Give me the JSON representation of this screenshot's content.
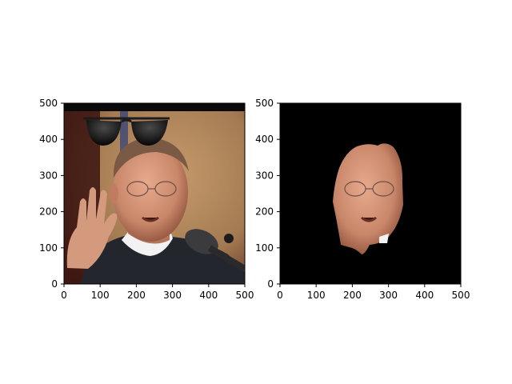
{
  "chart_data": [
    {
      "type": "image",
      "panel": "left",
      "content": "photo of a man in a dark suit and clerical collar raising his right hand beside a microphone, with black sunglasses overlaid above his head",
      "xlim": [
        0,
        500
      ],
      "ylim": [
        500,
        0
      ],
      "xticks": [
        0,
        100,
        200,
        300,
        400,
        500
      ],
      "yticks": [
        0,
        100,
        200,
        300,
        400,
        500
      ],
      "colors": {
        "background_top": "#1a0d0a",
        "wall": "#b08a5e",
        "suit": "#23262c",
        "collar": "#f2f2f2",
        "skin": "#c9876a",
        "sunglasses": "#0c0c0c"
      }
    },
    {
      "type": "image",
      "panel": "right",
      "content": "the same face cut out on a black background",
      "xlim": [
        0,
        500
      ],
      "ylim": [
        500,
        0
      ],
      "xticks": [
        0,
        100,
        200,
        300,
        400,
        500
      ],
      "yticks": [
        0,
        100,
        200,
        300,
        400,
        500
      ],
      "colors": {
        "background": "#000000",
        "skin": "#c9876a"
      }
    }
  ]
}
